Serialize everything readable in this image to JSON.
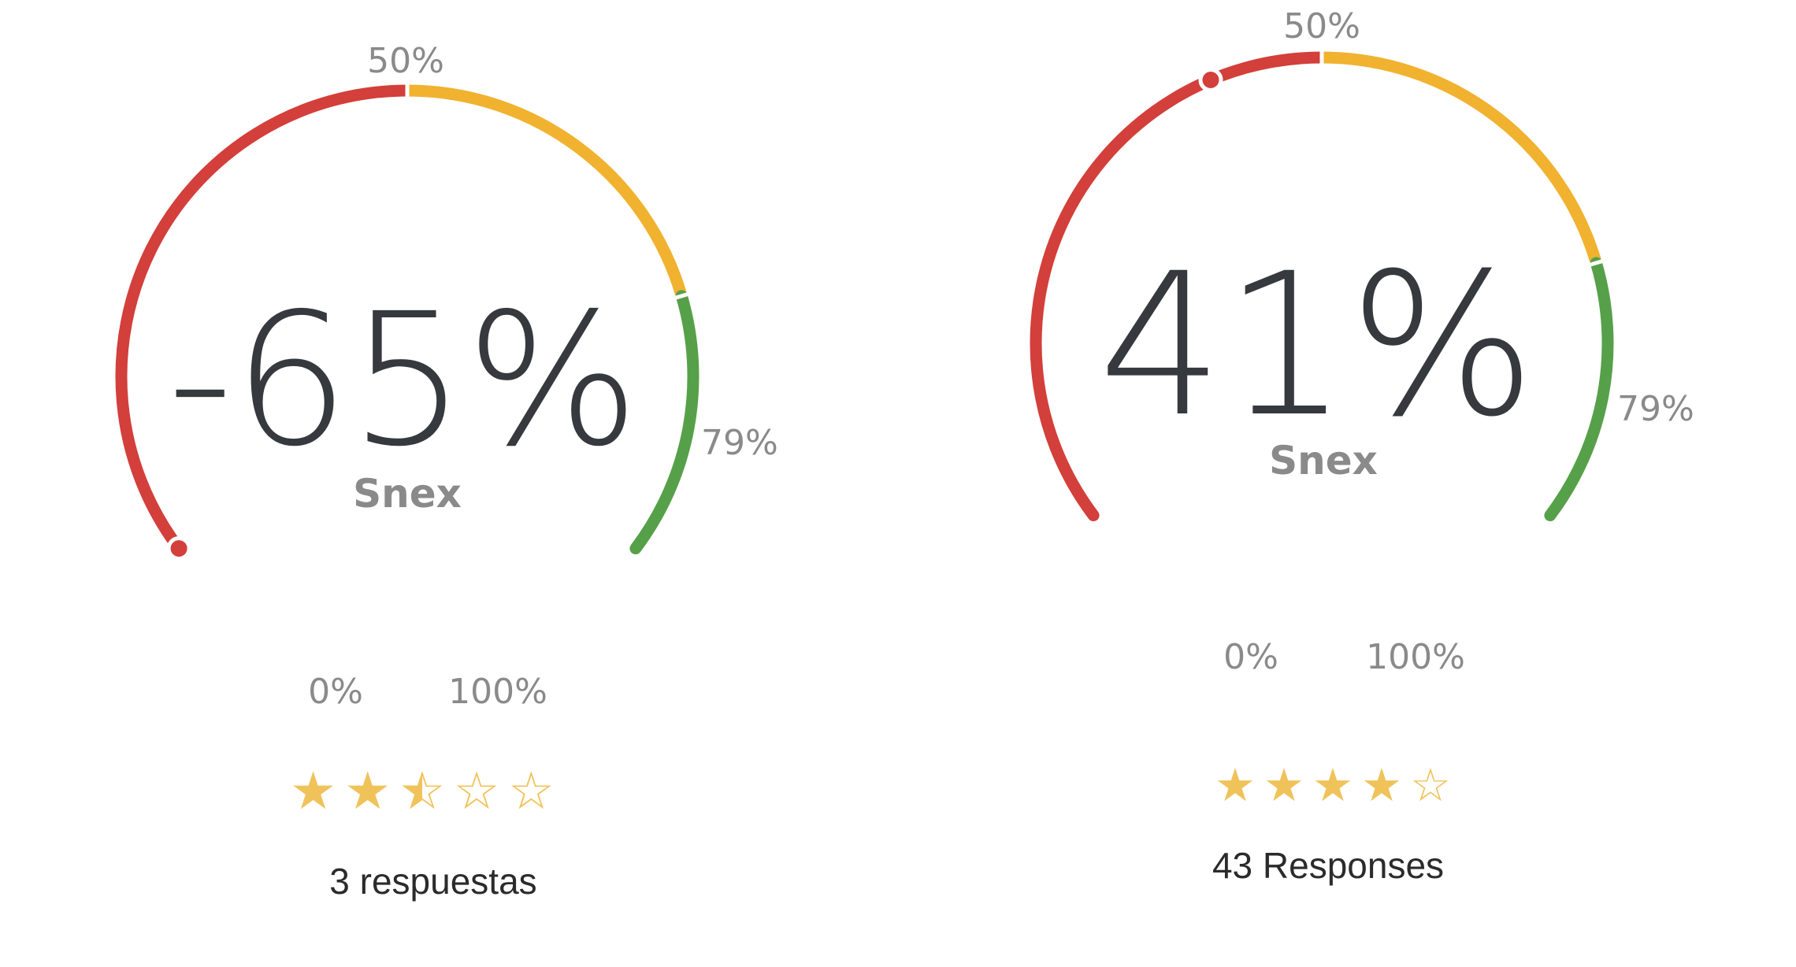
{
  "colors": {
    "red": "#d33f3a",
    "yellow": "#f0b22f",
    "green": "#57a04a",
    "star": "#f0c35a",
    "text_dark": "#36393d",
    "text_muted": "#8a8a8a"
  },
  "gauges": [
    {
      "value_text": "-65%",
      "caption": "Snex",
      "ticks": {
        "zero": "0%",
        "mid": "50%",
        "high": "79%",
        "full": "100%"
      },
      "marker_percent": 0,
      "rating_stars": 2.5,
      "responses": "3 respuestas"
    },
    {
      "value_text": "41%",
      "caption": "Snex",
      "ticks": {
        "zero": "0%",
        "mid": "50%",
        "high": "79%",
        "full": "100%"
      },
      "marker_percent": 41,
      "rating_stars": 4,
      "responses": "43 Responses"
    }
  ]
}
